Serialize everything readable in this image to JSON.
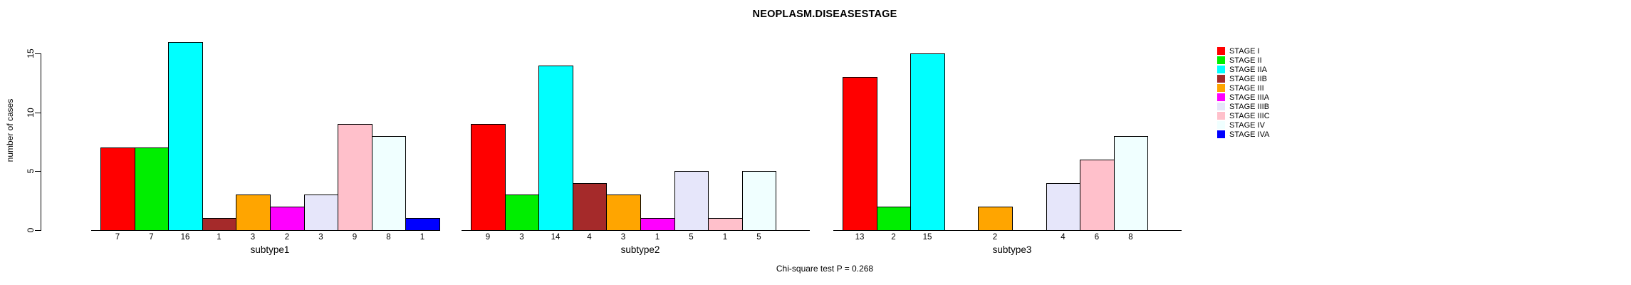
{
  "title": "NEOPLASM.DISEASESTAGE",
  "caption": "Chi-square test P = 0.268",
  "y_axis": {
    "label": "number of cases",
    "ticks": [
      0,
      5,
      10,
      15
    ]
  },
  "legend": {
    "position": "right",
    "entries": [
      {
        "label": "STAGE I",
        "color": "#FF0000"
      },
      {
        "label": "STAGE II",
        "color": "#00EE00"
      },
      {
        "label": "STAGE IIA",
        "color": "#00FFFF"
      },
      {
        "label": "STAGE IIB",
        "color": "#A52A2A"
      },
      {
        "label": "STAGE III",
        "color": "#FFA500"
      },
      {
        "label": "STAGE IIIA",
        "color": "#FF00FF"
      },
      {
        "label": "STAGE IIIB",
        "color": "#E6E6FA"
      },
      {
        "label": "STAGE IIIC",
        "color": "#FFC0CB"
      },
      {
        "label": "STAGE IV",
        "color": "#F0FFFF"
      },
      {
        "label": "STAGE IVA",
        "color": "#0000FF"
      }
    ]
  },
  "chart_data": {
    "type": "bar",
    "title": "NEOPLASM.DISEASESTAGE",
    "xlabel": "",
    "ylabel": "number of cases",
    "ylim": [
      0,
      16.5
    ],
    "yticks": [
      0,
      5,
      10,
      15
    ],
    "grid": false,
    "legend_position": "right",
    "series_labels": [
      "STAGE I",
      "STAGE II",
      "STAGE IIA",
      "STAGE IIB",
      "STAGE III",
      "STAGE IIIA",
      "STAGE IIIB",
      "STAGE IIIC",
      "STAGE IV",
      "STAGE IVA"
    ],
    "series_colors": [
      "#FF0000",
      "#00EE00",
      "#00FFFF",
      "#A52A2A",
      "#FFA500",
      "#FF00FF",
      "#E6E6FA",
      "#FFC0CB",
      "#F0FFFF",
      "#0000FF"
    ],
    "groups": [
      {
        "label": "subtype1",
        "values": [
          7,
          7,
          16,
          1,
          3,
          2,
          3,
          9,
          8,
          1
        ]
      },
      {
        "label": "subtype2",
        "values": [
          9,
          3,
          14,
          4,
          3,
          1,
          5,
          1,
          5,
          0
        ]
      },
      {
        "label": "subtype3",
        "values": [
          13,
          2,
          15,
          0,
          2,
          0,
          4,
          6,
          8,
          0
        ]
      }
    ],
    "bar_value_labels": "shown below each bar (zero-count bars omitted)",
    "annotation": "Chi-square test P = 0.268"
  }
}
